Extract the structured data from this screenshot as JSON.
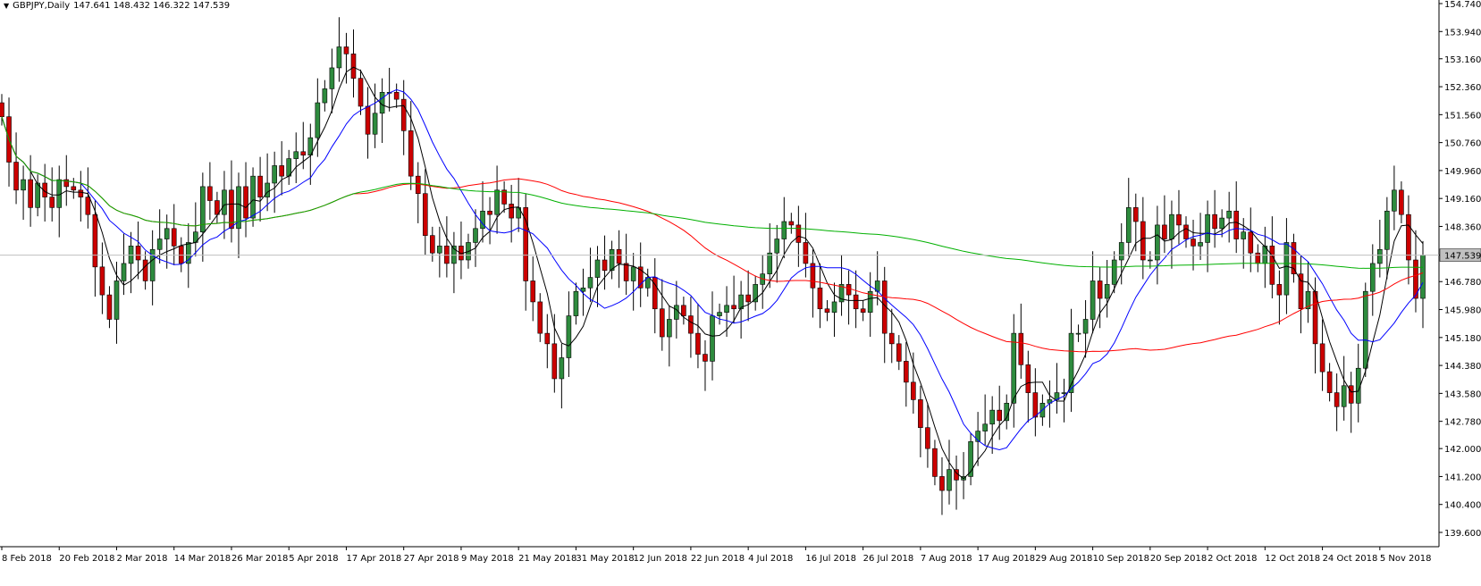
{
  "header": {
    "symbol": "GBPJPY,Daily",
    "ohlc": "147.641 148.432 146.322 147.539"
  },
  "chart_data": {
    "type": "candlestick",
    "title": "GBPJPY,Daily",
    "ylim": [
      139.6,
      154.74
    ],
    "y_ticks": [
      "154.740",
      "153.940",
      "153.160",
      "152.360",
      "151.560",
      "150.760",
      "149.960",
      "149.160",
      "148.360",
      "147.539",
      "146.780",
      "145.980",
      "145.180",
      "144.380",
      "143.580",
      "142.780",
      "142.000",
      "141.200",
      "140.400",
      "139.600"
    ],
    "y_tick_values": [
      154.74,
      153.94,
      153.16,
      152.36,
      151.56,
      150.76,
      149.96,
      149.16,
      148.36,
      147.539,
      146.78,
      145.98,
      145.18,
      144.38,
      143.58,
      142.78,
      142.0,
      141.2,
      140.4,
      139.6
    ],
    "x_ticks": [
      "8 Feb 2018",
      "20 Feb 2018",
      "2 Mar 2018",
      "14 Mar 2018",
      "26 Mar 2018",
      "5 Apr 2018",
      "17 Apr 2018",
      "27 Apr 2018",
      "9 May 2018",
      "21 May 2018",
      "31 May 2018",
      "12 Jun 2018",
      "22 Jun 2018",
      "4 Jul 2018",
      "16 Jul 2018",
      "26 Jul 2018",
      "7 Aug 2018",
      "17 Aug 2018",
      "29 Aug 2018",
      "10 Sep 2018",
      "20 Sep 2018",
      "2 Oct 2018",
      "12 Oct 2018",
      "24 Oct 2018",
      "5 Nov 2018"
    ],
    "x_tick_index": [
      0,
      8,
      16,
      24,
      32,
      40,
      48,
      56,
      64,
      72,
      80,
      88,
      96,
      104,
      112,
      120,
      128,
      136,
      144,
      152,
      160,
      168,
      176,
      184,
      192
    ],
    "current_price": "147.539",
    "current_value": 147.539,
    "closes": [
      151.5,
      150.2,
      149.4,
      149.7,
      148.9,
      149.6,
      149.2,
      148.9,
      149.7,
      149.5,
      149.4,
      149.2,
      148.7,
      147.2,
      146.4,
      145.7,
      146.8,
      147.3,
      147.8,
      147.4,
      146.8,
      147.7,
      148.0,
      148.3,
      147.8,
      147.3,
      147.9,
      148.2,
      149.5,
      149.1,
      148.7,
      149.4,
      148.3,
      149.5,
      148.6,
      149.8,
      149.2,
      149.6,
      150.1,
      149.8,
      150.3,
      150.5,
      150.4,
      150.9,
      151.9,
      152.3,
      152.9,
      153.5,
      153.3,
      152.6,
      151.8,
      151.0,
      151.6,
      152.2,
      152.2,
      152.0,
      151.1,
      149.8,
      149.3,
      148.1,
      147.6,
      147.8,
      147.3,
      147.8,
      147.4,
      147.9,
      148.3,
      148.8,
      148.7,
      149.4,
      149.0,
      148.6,
      148.9,
      146.8,
      146.2,
      145.3,
      145.0,
      144.0,
      144.6,
      145.8,
      146.5,
      146.6,
      146.9,
      147.4,
      147.1,
      147.7,
      147.3,
      146.8,
      147.2,
      146.6,
      146.9,
      146.0,
      145.2,
      145.7,
      146.1,
      145.8,
      145.3,
      144.7,
      144.5,
      145.8,
      145.9,
      146.1,
      146.0,
      146.4,
      146.2,
      146.7,
      147.0,
      147.6,
      148.0,
      148.5,
      148.4,
      147.9,
      147.3,
      146.6,
      146.0,
      145.9,
      146.2,
      146.7,
      146.4,
      146.0,
      145.9,
      146.5,
      146.8,
      145.3,
      145.0,
      144.5,
      143.9,
      143.4,
      142.6,
      142.0,
      141.2,
      140.8,
      141.4,
      141.1,
      141.2,
      142.2,
      142.5,
      142.7,
      143.1,
      142.8,
      143.3,
      145.3,
      144.4,
      143.6,
      142.9,
      143.3,
      143.4,
      143.6,
      143.6,
      145.3,
      145.3,
      145.7,
      146.8,
      146.3,
      146.7,
      147.4,
      147.9,
      148.9,
      148.5,
      147.4,
      147.4,
      148.4,
      148.0,
      148.7,
      148.4,
      148.0,
      147.8,
      147.9,
      148.7,
      148.3,
      148.6,
      148.8,
      148.0,
      148.2,
      147.6,
      147.3,
      147.8,
      146.7,
      146.4,
      147.9,
      147.0,
      146.0,
      146.5,
      145.0,
      144.2,
      143.6,
      143.2,
      143.8,
      143.3,
      144.3,
      146.5,
      147.3,
      147.7,
      148.8,
      149.4,
      148.7,
      147.4,
      146.3,
      147.539
    ]
  }
}
